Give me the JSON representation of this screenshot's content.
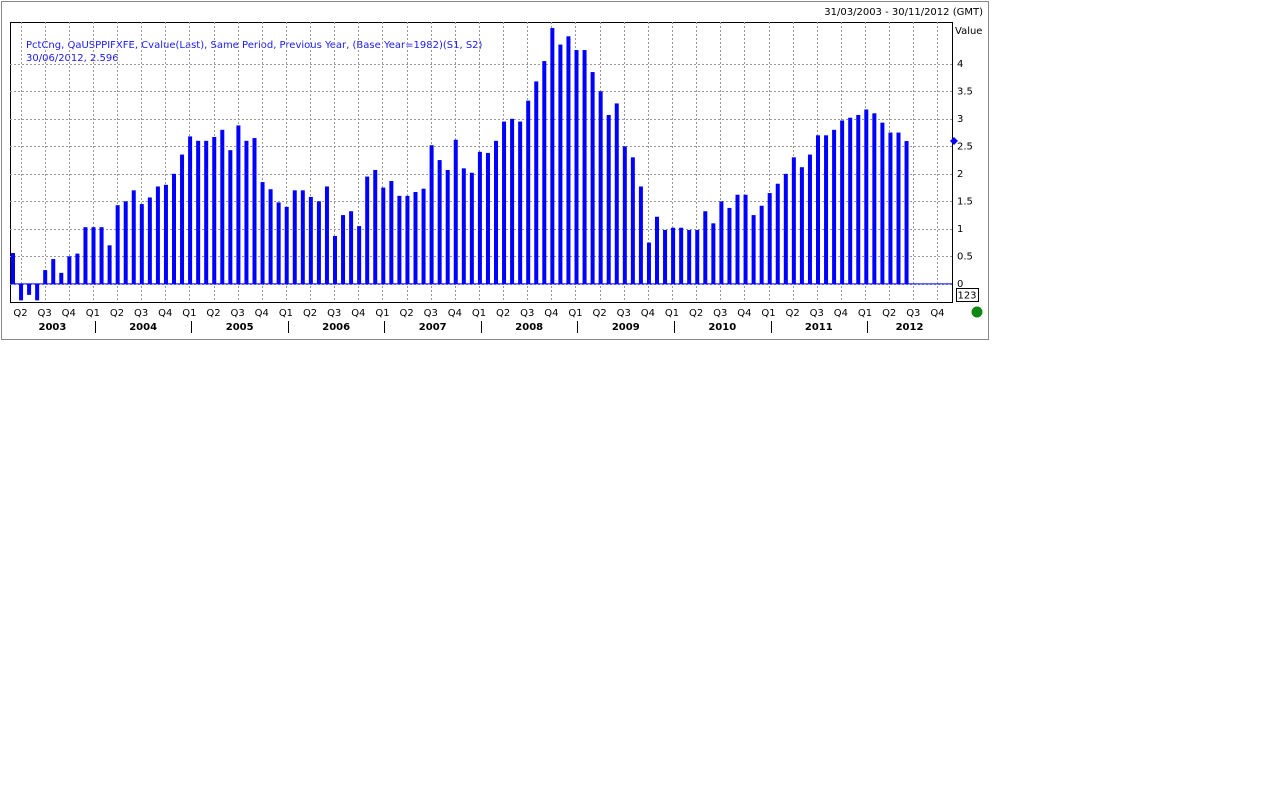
{
  "chart_data": {
    "type": "bar",
    "date_range": "31/03/2003 - 30/11/2012 (GMT)",
    "series_label": "PctCng, QaUSPPIFXFE, Cvalue(Last), Same Period, Previous Year, (Base Year=1982)(S1, S2)",
    "last_point_label": "30/06/2012, 2.596",
    "y_axis_label": "Value",
    "scale_button": "123",
    "color": "#0000ff",
    "last_value": 2.596,
    "values": [
      0.56,
      -0.3,
      -0.2,
      -0.3,
      0.25,
      0.45,
      0.2,
      0.5,
      0.55,
      1.03,
      1.03,
      1.03,
      0.7,
      1.43,
      1.5,
      1.7,
      1.45,
      1.57,
      1.77,
      1.8,
      2.0,
      2.35,
      2.68,
      2.6,
      2.6,
      2.67,
      2.8,
      2.43,
      2.88,
      2.6,
      2.65,
      1.85,
      1.72,
      1.48,
      1.4,
      1.7,
      1.7,
      1.58,
      1.5,
      1.77,
      0.87,
      1.25,
      1.32,
      1.05,
      1.95,
      2.07,
      1.75,
      1.87,
      1.6,
      1.6,
      1.67,
      1.73,
      2.52,
      2.25,
      2.07,
      2.62,
      2.1,
      2.02,
      2.4,
      2.38,
      2.6,
      2.95,
      3.0,
      2.95,
      3.33,
      3.68,
      4.05,
      4.65,
      4.35,
      4.5,
      4.25,
      4.25,
      3.85,
      3.5,
      3.07,
      3.28,
      2.5,
      2.3,
      1.77,
      0.75,
      1.22,
      0.98,
      1.02,
      1.02,
      0.98,
      0.98,
      1.32,
      1.1,
      1.5,
      1.38,
      1.62,
      1.62,
      1.25,
      1.42,
      1.65,
      1.82,
      2.0,
      2.3,
      2.12,
      2.35,
      2.7,
      2.7,
      2.8,
      2.97,
      3.02,
      3.07,
      3.17,
      3.1,
      2.93,
      2.75,
      2.75,
      2.596
    ],
    "quarters": [
      "Q2",
      "Q3",
      "Q4",
      "Q1",
      "Q2",
      "Q3",
      "Q4",
      "Q1",
      "Q2",
      "Q3",
      "Q4",
      "Q1",
      "Q2",
      "Q3",
      "Q4",
      "Q1",
      "Q2",
      "Q3",
      "Q4",
      "Q1",
      "Q2",
      "Q3",
      "Q4",
      "Q1",
      "Q2",
      "Q3",
      "Q4",
      "Q1",
      "Q2",
      "Q3",
      "Q4",
      "Q1",
      "Q2",
      "Q3",
      "Q4",
      "Q1",
      "Q2",
      "Q3",
      "Q4"
    ],
    "years": [
      "2003",
      "2004",
      "2005",
      "2006",
      "2007",
      "2008",
      "2009",
      "2010",
      "2011",
      "2012"
    ],
    "ylim": [
      -0.33,
      4.76
    ],
    "yticks": [
      0,
      0.5,
      1,
      1.5,
      2,
      2.5,
      3,
      3.5,
      4
    ],
    "grid": true
  }
}
